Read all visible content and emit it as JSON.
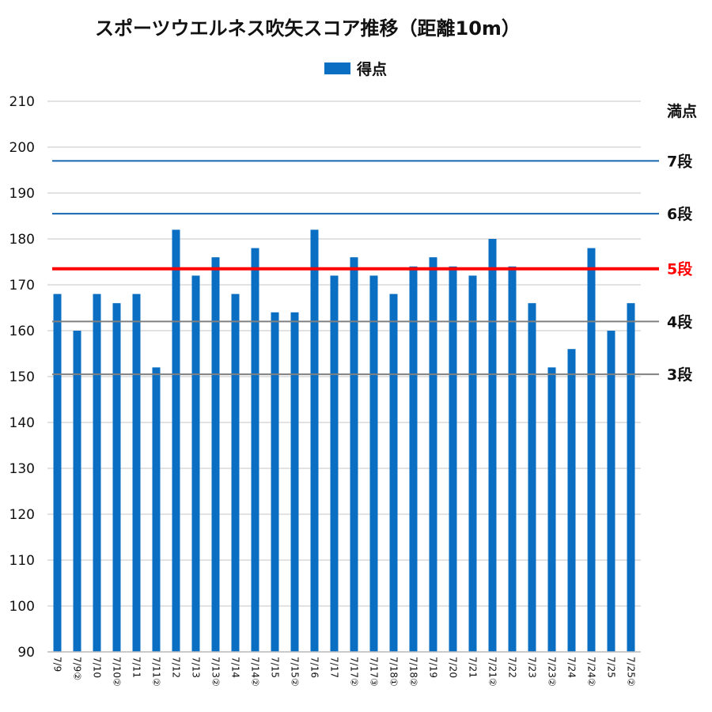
{
  "chart_data": {
    "type": "bar",
    "title": "スポーツウエルネス吹矢スコア推移（距離10m）",
    "legend": {
      "position": "top-center",
      "series_name": "得点"
    },
    "ylim": [
      90,
      210
    ],
    "yticks": [
      90,
      100,
      110,
      120,
      130,
      140,
      150,
      160,
      170,
      180,
      190,
      200,
      210
    ],
    "grid": true,
    "categories": [
      "7/9",
      "7/9②",
      "7/10",
      "7/10②",
      "7/11",
      "7/11②",
      "7/12",
      "7/13",
      "7/13②",
      "7/14",
      "7/14②",
      "7/15",
      "7/15②",
      "7/16",
      "7/17",
      "7/17②",
      "7/17③",
      "7/18①",
      "7/18②",
      "7/19",
      "7/20",
      "7/21",
      "7/21②",
      "7/22",
      "7/23",
      "7/23②",
      "7/24",
      "7/24②",
      "7/25",
      "7/25②"
    ],
    "series": [
      {
        "name": "得点",
        "color": "#0a6fc2",
        "values": [
          168,
          160,
          168,
          166,
          168,
          152,
          182,
          172,
          176,
          168,
          178,
          164,
          164,
          182,
          172,
          176,
          172,
          168,
          174,
          176,
          174,
          172,
          180,
          174,
          166,
          152,
          156,
          178,
          160,
          166
        ]
      }
    ],
    "reference_lines": [
      {
        "label": "満点",
        "value": 210,
        "color": "#d0d0d0",
        "label_color": "#111111"
      },
      {
        "label": "7段",
        "value": 197,
        "color": "#1565b0",
        "label_color": "#111111"
      },
      {
        "label": "6段",
        "value": 185.5,
        "color": "#1565b0",
        "label_color": "#111111"
      },
      {
        "label": "5段",
        "value": 173.5,
        "color": "#ff0000",
        "label_color": "#ff0000"
      },
      {
        "label": "4段",
        "value": 162,
        "color": "#808080",
        "label_color": "#111111"
      },
      {
        "label": "3段",
        "value": 150.5,
        "color": "#808080",
        "label_color": "#111111"
      }
    ]
  }
}
